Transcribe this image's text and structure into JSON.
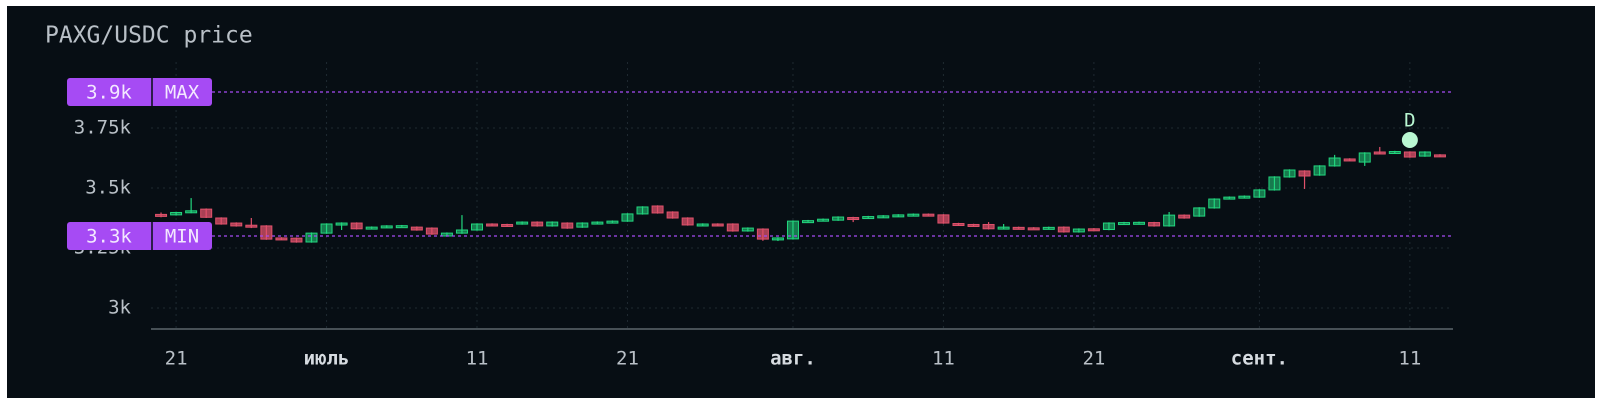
{
  "chart_data": {
    "type": "candlestick",
    "title": "PAXG/USDC price",
    "x": [
      "06-20",
      "06-21",
      "06-22",
      "06-23",
      "06-24",
      "06-25",
      "06-26",
      "06-27",
      "06-28",
      "06-29",
      "06-30",
      "07-01",
      "07-02",
      "07-03",
      "07-04",
      "07-05",
      "07-06",
      "07-07",
      "07-08",
      "07-09",
      "07-10",
      "07-11",
      "07-12",
      "07-13",
      "07-14",
      "07-15",
      "07-16",
      "07-17",
      "07-18",
      "07-19",
      "07-20",
      "07-21",
      "07-22",
      "07-23",
      "07-24",
      "07-25",
      "07-26",
      "07-27",
      "07-28",
      "07-29",
      "07-30",
      "07-31",
      "08-01",
      "08-02",
      "08-03",
      "08-04",
      "08-05",
      "08-06",
      "08-07",
      "08-08",
      "08-09",
      "08-10",
      "08-11",
      "08-12",
      "08-13",
      "08-14",
      "08-15",
      "08-16",
      "08-17",
      "08-18",
      "08-19",
      "08-20",
      "08-21",
      "08-22",
      "08-23",
      "08-24",
      "08-25",
      "08-26",
      "08-27",
      "08-28",
      "08-29",
      "08-30",
      "08-31",
      "09-01",
      "09-02",
      "09-03",
      "09-04",
      "09-05",
      "09-06",
      "09-07",
      "09-08",
      "09-09",
      "09-10",
      "09-11",
      "09-12",
      "09-13"
    ],
    "open": [
      3390,
      3388,
      3398,
      3412,
      3375,
      3354,
      3345,
      3342,
      3292,
      3291,
      3275,
      3312,
      3346,
      3354,
      3333,
      3338,
      3341,
      3337,
      3333,
      3300,
      3312,
      3325,
      3350,
      3348,
      3350,
      3358,
      3342,
      3354,
      3337,
      3354,
      3358,
      3362,
      3392,
      3425,
      3400,
      3375,
      3346,
      3350,
      3350,
      3321,
      3329,
      3288,
      3288,
      3362,
      3366,
      3366,
      3377,
      3376,
      3380,
      3384,
      3388,
      3391,
      3388,
      3352,
      3348,
      3348,
      3330,
      3336,
      3334,
      3332,
      3337,
      3317,
      3330,
      3327,
      3354,
      3355,
      3356,
      3342,
      3387,
      3383,
      3417,
      3458,
      3462,
      3462,
      3492,
      3546,
      3571,
      3554,
      3592,
      3621,
      3608,
      3650,
      3648,
      3650,
      3633,
      3638
    ],
    "high": [
      3398,
      3401,
      3458,
      3415,
      3378,
      3357,
      3375,
      3345,
      3295,
      3294,
      3315,
      3353,
      3357,
      3357,
      3340,
      3345,
      3346,
      3340,
      3336,
      3315,
      3387,
      3353,
      3353,
      3351,
      3361,
      3361,
      3361,
      3357,
      3357,
      3361,
      3365,
      3395,
      3424,
      3428,
      3403,
      3378,
      3353,
      3353,
      3353,
      3336,
      3332,
      3295,
      3365,
      3367,
      3373,
      3382,
      3380,
      3384,
      3387,
      3391,
      3394,
      3394,
      3391,
      3355,
      3351,
      3358,
      3350,
      3339,
      3337,
      3339,
      3340,
      3332,
      3333,
      3357,
      3359,
      3360,
      3359,
      3400,
      3390,
      3420,
      3457,
      3465,
      3469,
      3495,
      3549,
      3578,
      3574,
      3595,
      3638,
      3624,
      3649,
      3671,
      3655,
      3653,
      3653,
      3641
    ],
    "low": [
      3378,
      3385,
      3395,
      3375,
      3347,
      3339,
      3333,
      3284,
      3285,
      3272,
      3272,
      3309,
      3325,
      3327,
      3330,
      3335,
      3338,
      3322,
      3305,
      3297,
      3309,
      3322,
      3343,
      3342,
      3347,
      3339,
      3339,
      3330,
      3334,
      3351,
      3355,
      3359,
      3389,
      3393,
      3372,
      3343,
      3343,
      3343,
      3318,
      3318,
      3280,
      3279,
      3285,
      3359,
      3363,
      3363,
      3358,
      3373,
      3377,
      3381,
      3385,
      3385,
      3351,
      3345,
      3342,
      3327,
      3327,
      3330,
      3329,
      3329,
      3314,
      3314,
      3324,
      3324,
      3351,
      3352,
      3339,
      3339,
      3372,
      3380,
      3414,
      3455,
      3459,
      3459,
      3489,
      3543,
      3496,
      3551,
      3589,
      3614,
      3592,
      3643,
      3645,
      3626,
      3630,
      3631
    ],
    "close": [
      3385,
      3398,
      3405,
      3378,
      3350,
      3342,
      3343,
      3287,
      3288,
      3275,
      3312,
      3350,
      3354,
      3330,
      3337,
      3342,
      3343,
      3325,
      3308,
      3312,
      3325,
      3350,
      3346,
      3345,
      3358,
      3342,
      3358,
      3333,
      3354,
      3358,
      3362,
      3392,
      3421,
      3396,
      3375,
      3346,
      3350,
      3346,
      3321,
      3333,
      3287,
      3292,
      3362,
      3364,
      3370,
      3379,
      3374,
      3381,
      3384,
      3388,
      3391,
      3388,
      3354,
      3348,
      3345,
      3330,
      3337,
      3333,
      3332,
      3336,
      3317,
      3329,
      3327,
      3354,
      3356,
      3357,
      3342,
      3387,
      3375,
      3417,
      3454,
      3462,
      3466,
      3492,
      3546,
      3575,
      3550,
      3592,
      3625,
      3617,
      3646,
      3646,
      3652,
      3629,
      3650,
      3634
    ],
    "up_color": "#22d67e",
    "down_color": "#e0516b",
    "xlim": [
      "06-19",
      "09-14"
    ],
    "xticks": [
      {
        "value": "06-21",
        "label": "21"
      },
      {
        "value": "07-01",
        "label": "июль"
      },
      {
        "value": "07-11",
        "label": "11"
      },
      {
        "value": "07-21",
        "label": "21"
      },
      {
        "value": "08-01",
        "label": "авг."
      },
      {
        "value": "08-11",
        "label": "11"
      },
      {
        "value": "08-21",
        "label": "21"
      },
      {
        "value": "09-01",
        "label": "сент."
      },
      {
        "value": "09-11",
        "label": "11"
      }
    ],
    "ylim": [
      2912.5,
      4025
    ],
    "yticks": [
      {
        "value": 3000,
        "label": "3k"
      },
      {
        "value": 3250,
        "label": "3.25k"
      },
      {
        "value": 3500,
        "label": "3.5k"
      },
      {
        "value": 3750,
        "label": "3.75k"
      }
    ],
    "grid": true,
    "levels": [
      {
        "value": 3900,
        "label": "3.9k",
        "tag": "MAX",
        "color": "#a64bf4"
      },
      {
        "value": 3300,
        "label": "3.3k",
        "tag": "MIN",
        "color": "#a64bf4"
      }
    ],
    "annotations": [
      {
        "x": "09-11",
        "value": 3700,
        "label": "D",
        "color": "#b9f7d2"
      }
    ]
  }
}
